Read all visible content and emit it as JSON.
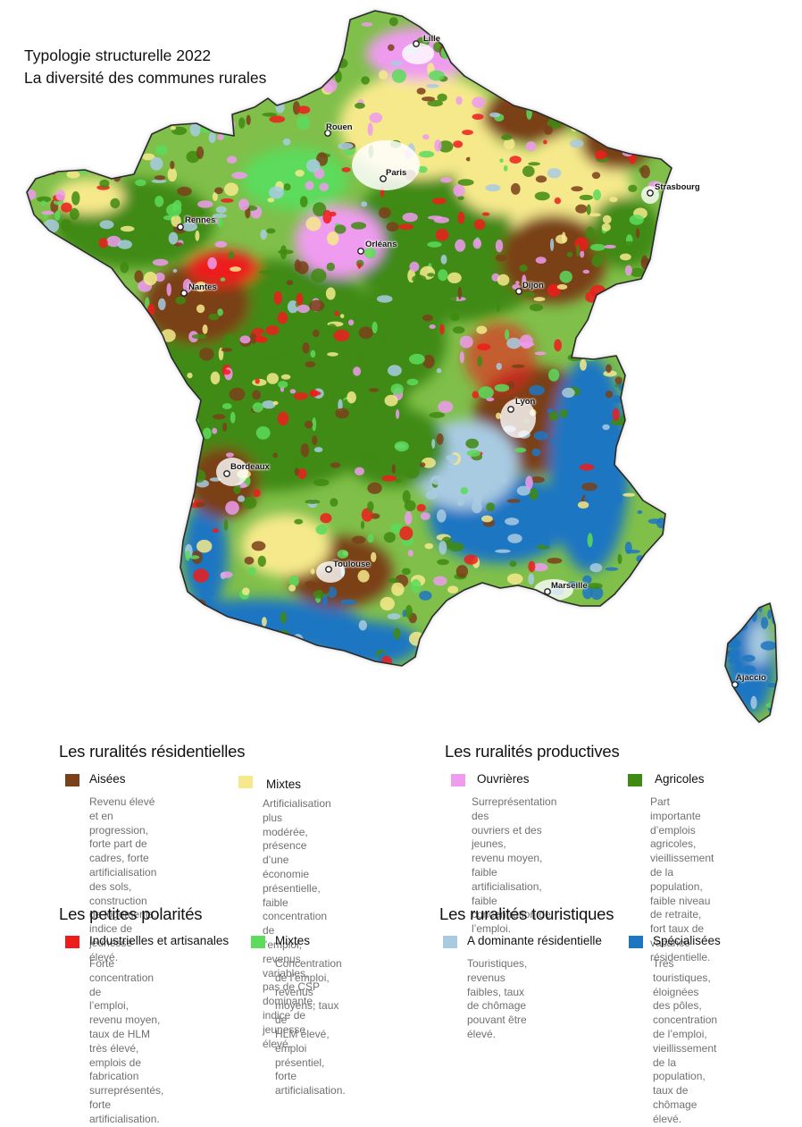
{
  "title": {
    "line1": "Typologie structurelle 2022",
    "line2": "La diversité des communes rurales"
  },
  "cities": [
    "Lille",
    "Rouen",
    "Paris",
    "Strasbourg",
    "Rennes",
    "Orléans",
    "Nantes",
    "Dijon",
    "Lyon",
    "Bordeaux",
    "Toulouse",
    "Marseille",
    "Ajaccio"
  ],
  "colors": {
    "aisees": "#7a4019",
    "mixtes_residentielles": "#f6e98c",
    "ouvrieres": "#ef9bef",
    "agricoles": "#3f8a12",
    "industrielles": "#ee1c1c",
    "mixtes_polarites": "#5cdb5c",
    "tour_residentielle": "#a8cbe2",
    "tour_specialisees": "#1e76c2",
    "urban": "#ffffff",
    "border": "#2a2a2a"
  },
  "legend": {
    "residentielles": {
      "title": "Les ruralités résidentielles",
      "items": [
        {
          "label": "Aisées",
          "desc": "Revenu élevé et en\nprogression, forte part de\ncadres, forte\nartificialisation des sols,\nconstruction de logements,\nindice de jeunesse élevé."
        },
        {
          "label": "Mixtes",
          "desc": "Artificialisation plus\nmodérée, présence d’une\néconomie présentielle,\nfaible concentration de\nl’emploi, revenus variables,\npas de CSP dominante,\nindice de jeunesse élevé."
        }
      ]
    },
    "productives": {
      "title": "Les ruralités productives",
      "items": [
        {
          "label": "Ouvrières",
          "desc": "Surreprésentation des\nouvriers et des jeunes,\nrevenu moyen, faible\nartificialisation, faible\nconcentration de l’emploi."
        },
        {
          "label": "Agricoles",
          "desc": "Part importante\nd’emplois agricoles,\nvieillissement de la\npopulation, faible niveau\nde retraite, fort taux de\nvacance résidentielle."
        }
      ]
    },
    "polarites": {
      "title": "Les petites polarités",
      "items": [
        {
          "label": "Industrielles et artisanales",
          "desc": "Forte concentration de\nl’emploi, revenu moyen,\ntaux de HLM très élevé,\nemplois de fabrication\nsurreprésentés, forte\nartificialisation."
        },
        {
          "label": "Mixtes",
          "desc": "Concentration de l’emploi,\nrevenus moyens, taux de\nHLM élevé, emploi\nprésentiel, forte\nartificialisation."
        }
      ]
    },
    "touristiques": {
      "title": "Les ruralités touristiques",
      "items": [
        {
          "label": "A dominante résidentielle",
          "desc": "Touristiques, revenus\nfaibles, taux de chômage\npouvant être élevé."
        },
        {
          "label": "Spécialisées",
          "desc": "Très touristiques,\néloignées des pôles,\nconcentration de l’emploi,\nvieillissement de la\npopulation, taux de\nchômage élevé."
        }
      ]
    }
  }
}
